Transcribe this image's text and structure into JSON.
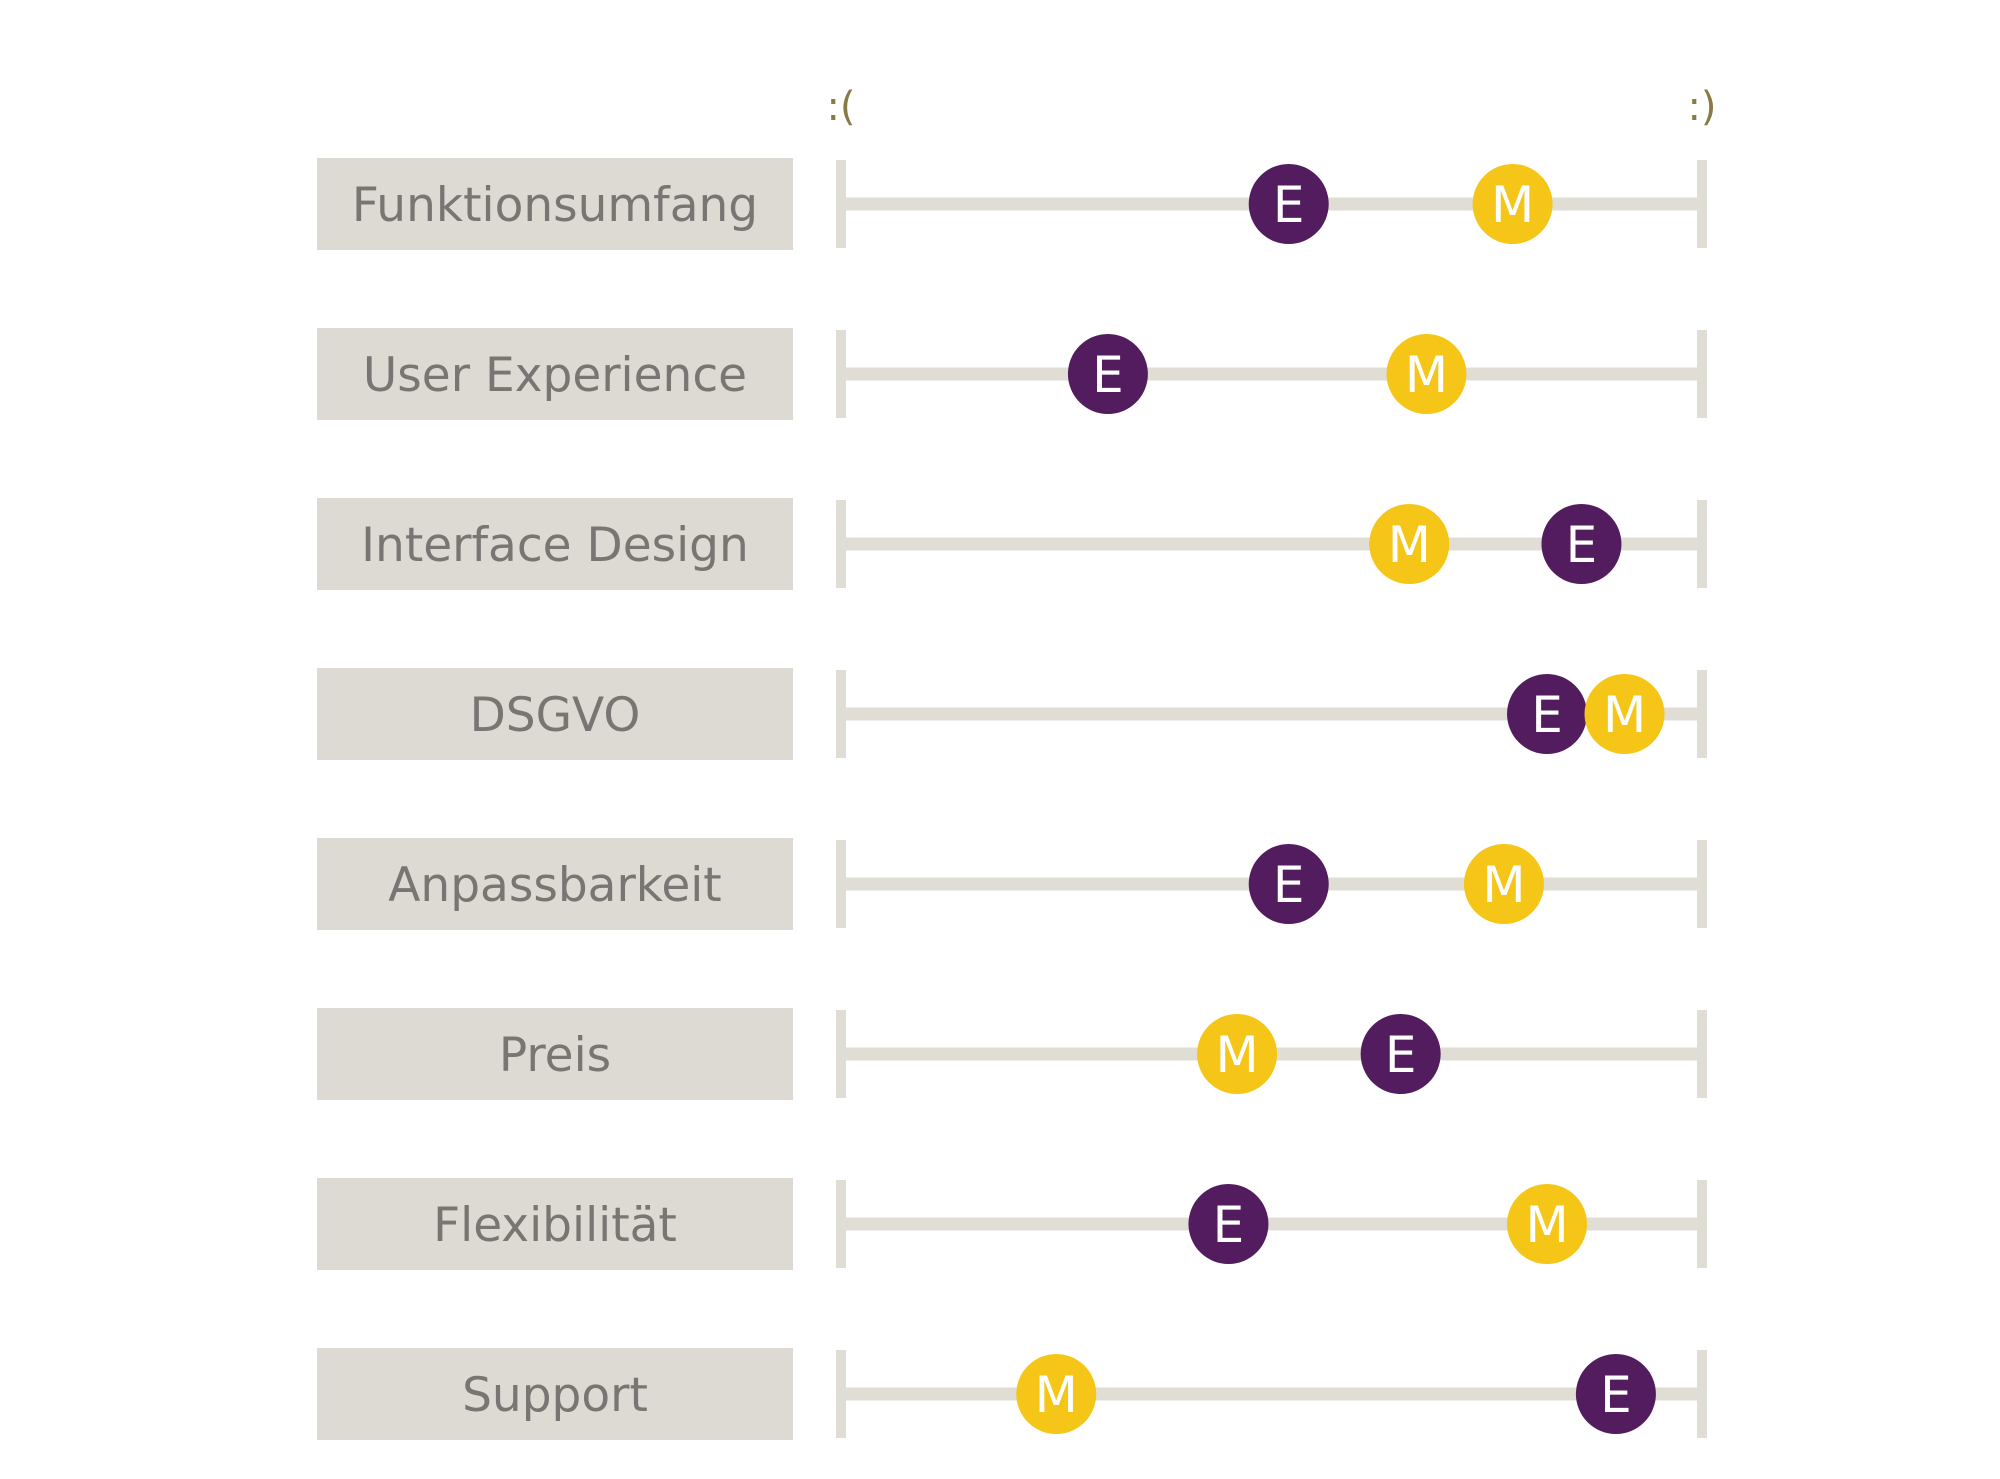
{
  "chart_data": {
    "type": "scatter",
    "scale": {
      "min_label": ":(",
      "max_label": ":)"
    },
    "xlim": [
      0,
      100
    ],
    "categories": [
      "Funktionsumfang",
      "User Experience",
      "Interface Design",
      "DSGVO",
      "Anpassbarkeit",
      "Preis",
      "Flexibilität",
      "Support"
    ],
    "series": [
      {
        "marker_letter": "E",
        "color": "#521c5e",
        "text_color": "#ffffff",
        "values": [
          52,
          31,
          86,
          82,
          52,
          65,
          45,
          90
        ]
      },
      {
        "marker_letter": "M",
        "color": "#f5c518",
        "text_color": "#ffffff",
        "values": [
          78,
          68,
          66,
          91,
          77,
          46,
          82,
          25
        ]
      }
    ],
    "colors": {
      "track": "#e0ddd5",
      "label_box": "#dddad3",
      "label_text": "#787573",
      "end_label_text": "#8a7a45"
    }
  }
}
